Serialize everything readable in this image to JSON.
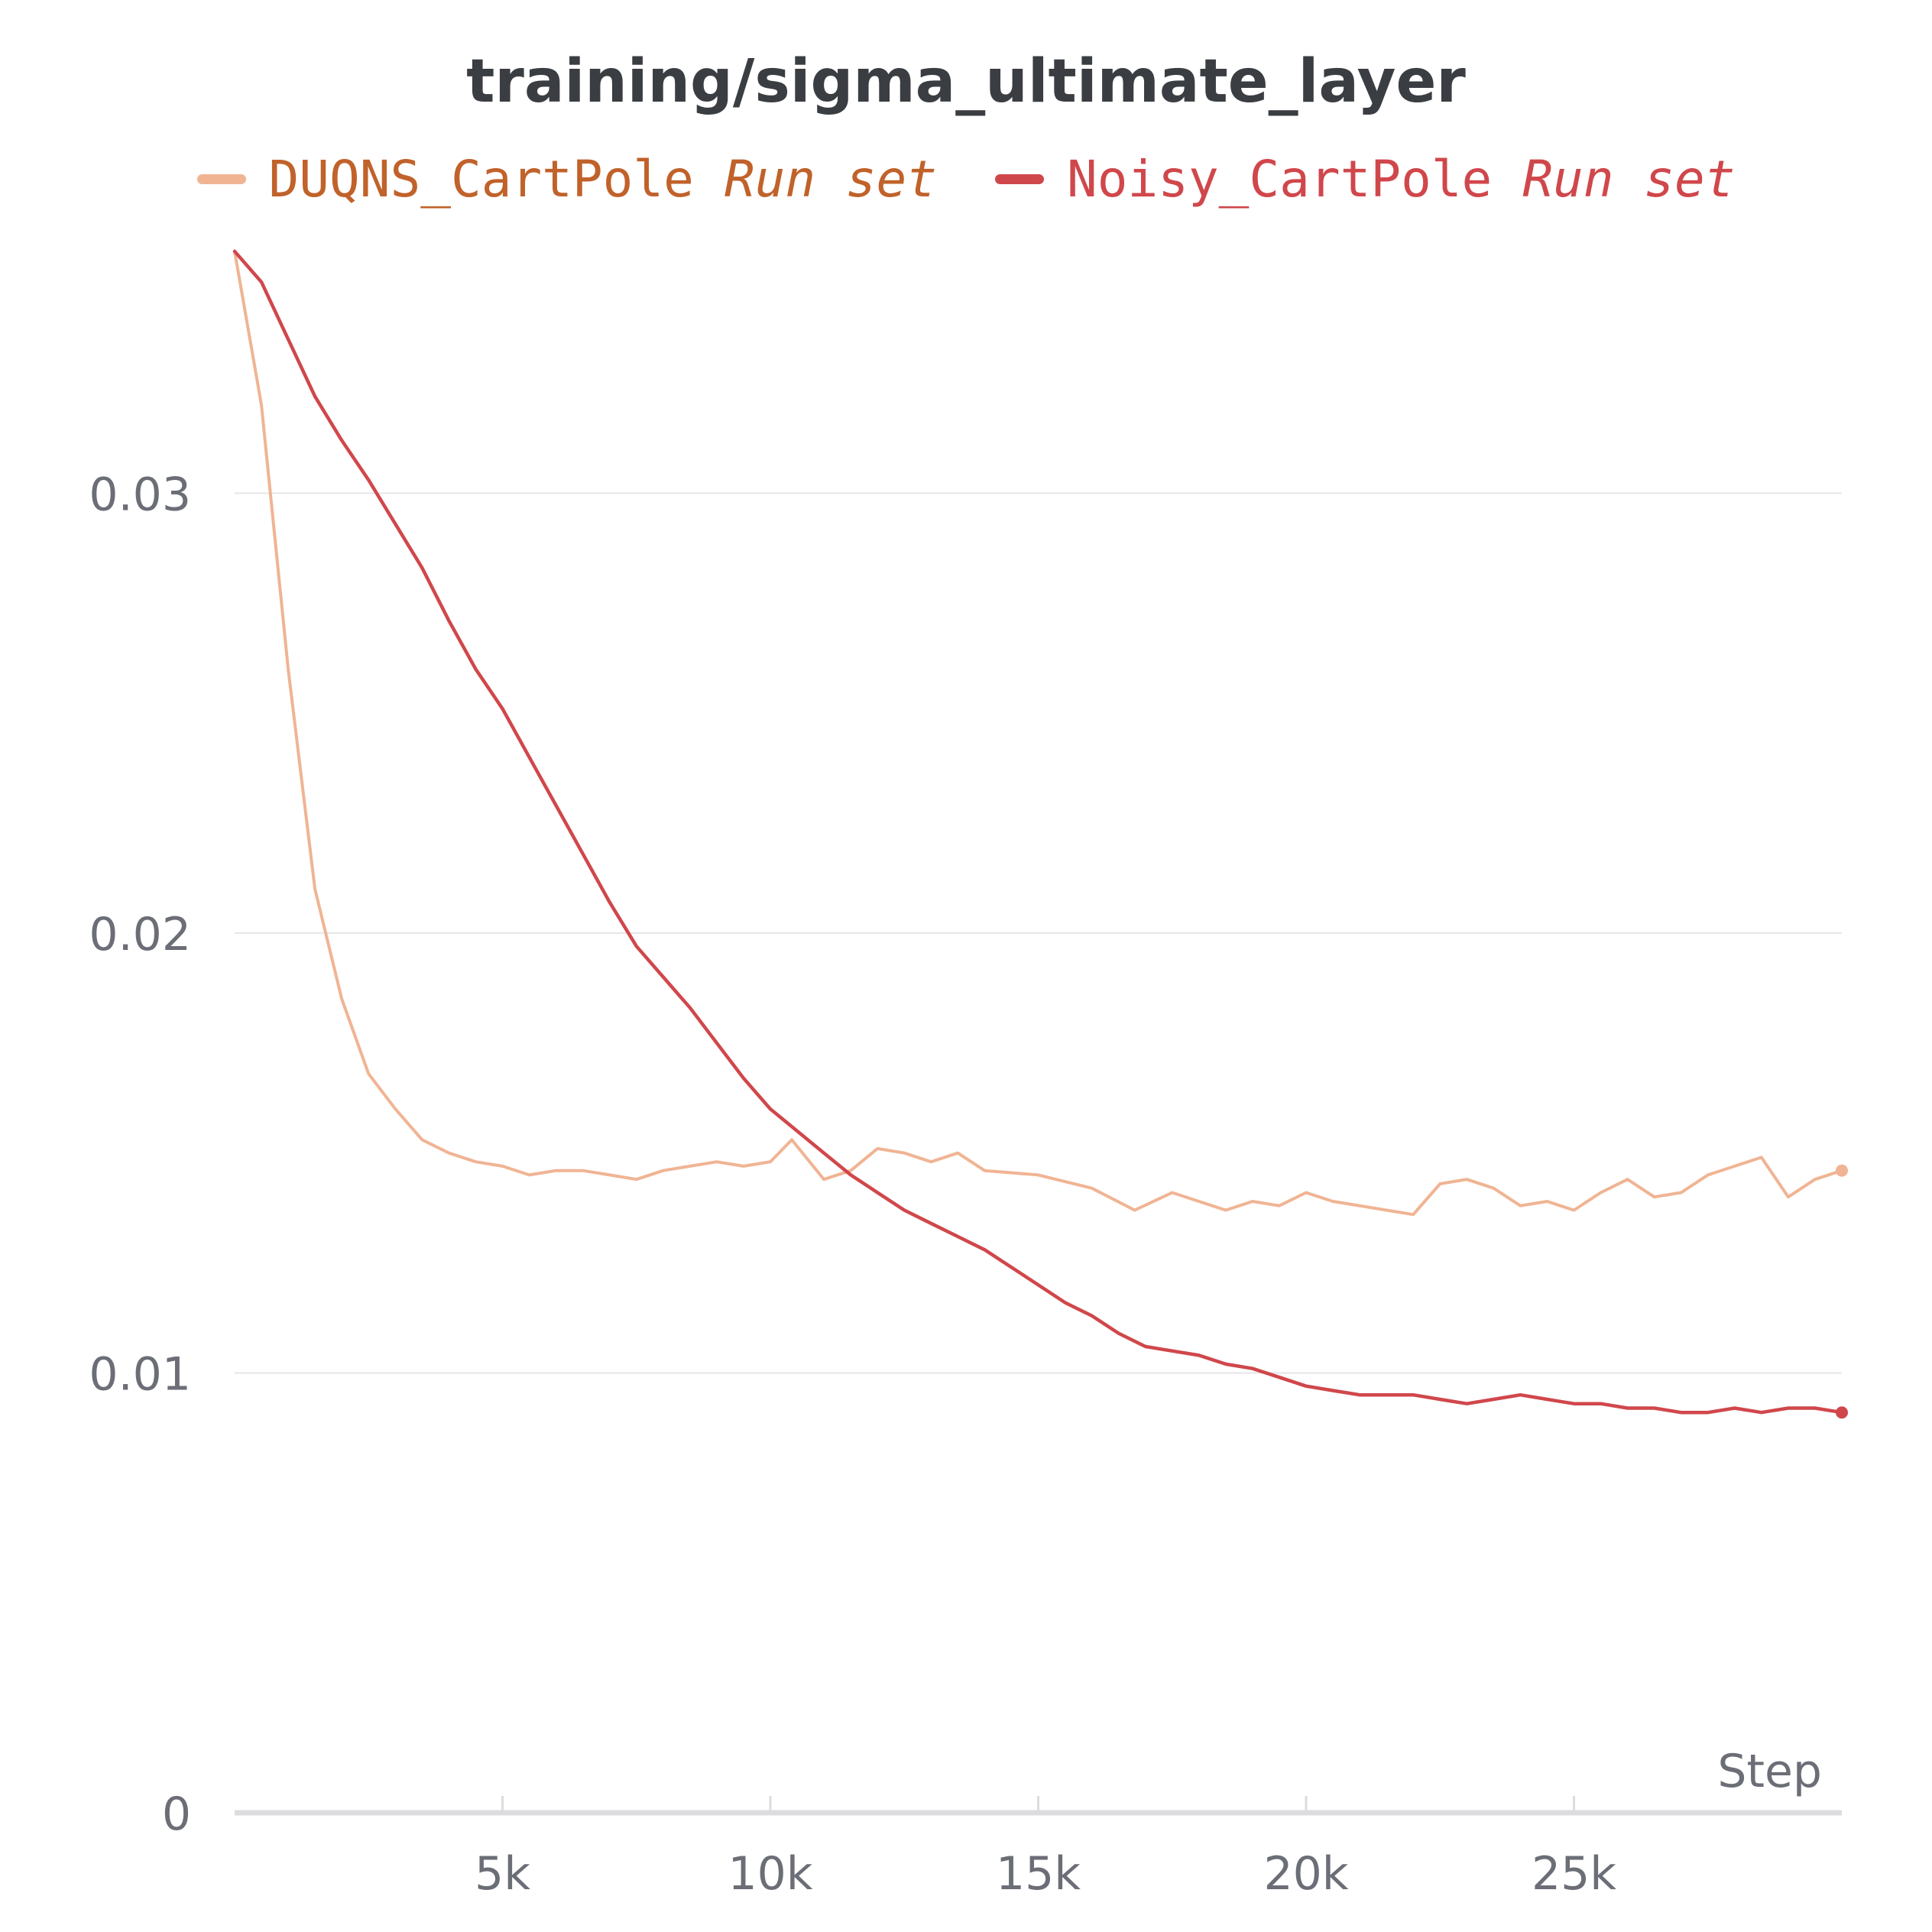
{
  "chart_data": {
    "type": "line",
    "title": "training/sigma_ultimate_layer",
    "xlabel": "Step",
    "ylabel": "",
    "xlim": [
      0,
      30000
    ],
    "ylim": [
      0,
      0.036
    ],
    "x_ticks": [
      {
        "value": 5000,
        "label": "5k"
      },
      {
        "value": 10000,
        "label": "10k"
      },
      {
        "value": 15000,
        "label": "15k"
      },
      {
        "value": 20000,
        "label": "20k"
      },
      {
        "value": 25000,
        "label": "25k"
      }
    ],
    "y_ticks": [
      {
        "value": 0,
        "label": "0"
      },
      {
        "value": 0.01,
        "label": "0.01"
      },
      {
        "value": 0.02,
        "label": "0.02"
      },
      {
        "value": 0.03,
        "label": "0.03"
      }
    ],
    "grid": true,
    "legend_position": "top-center",
    "legend_suffix": "Run set",
    "series": [
      {
        "name": "DUQNS_CartPole",
        "color": "#f0b493",
        "legend_color": "#c0622a",
        "x": [
          0,
          500,
          1000,
          1500,
          2000,
          2500,
          3000,
          3500,
          4000,
          4500,
          5000,
          5500,
          6000,
          6500,
          7000,
          7500,
          8000,
          8500,
          9000,
          9500,
          10000,
          10400,
          11000,
          11500,
          12000,
          12500,
          13000,
          13500,
          14000,
          15000,
          16000,
          16800,
          17500,
          18000,
          18500,
          19000,
          19500,
          20000,
          20500,
          21000,
          21500,
          22000,
          22500,
          23000,
          23500,
          24000,
          24500,
          25000,
          25500,
          26000,
          26500,
          27000,
          27500,
          28000,
          28500,
          29000,
          29500,
          30000
        ],
        "y": [
          0.0355,
          0.032,
          0.026,
          0.021,
          0.0185,
          0.0168,
          0.016,
          0.0153,
          0.015,
          0.0148,
          0.0147,
          0.0145,
          0.0146,
          0.0146,
          0.0145,
          0.0144,
          0.0146,
          0.0147,
          0.0148,
          0.0147,
          0.0148,
          0.0153,
          0.0144,
          0.0146,
          0.0151,
          0.015,
          0.0148,
          0.015,
          0.0146,
          0.0145,
          0.0142,
          0.0137,
          0.0141,
          0.0139,
          0.0137,
          0.0139,
          0.0138,
          0.0141,
          0.0139,
          0.0138,
          0.0137,
          0.0136,
          0.0143,
          0.0144,
          0.0142,
          0.0138,
          0.0139,
          0.0137,
          0.0141,
          0.0144,
          0.014,
          0.0141,
          0.0145,
          0.0147,
          0.0149,
          0.014,
          0.0144,
          0.0146
        ]
      },
      {
        "name": "Noisy_CartPole",
        "color": "#d0474b",
        "legend_color": "#d0474b",
        "x": [
          0,
          500,
          1000,
          1500,
          2000,
          2500,
          3000,
          3500,
          4000,
          4500,
          5000,
          5500,
          6000,
          6500,
          7000,
          7500,
          8000,
          8500,
          9000,
          9500,
          10000,
          10500,
          11000,
          11500,
          12000,
          12500,
          13000,
          13500,
          14000,
          14500,
          15000,
          15500,
          16000,
          16500,
          17000,
          17500,
          18000,
          18500,
          19000,
          19500,
          20000,
          20500,
          21000,
          21500,
          22000,
          22500,
          23000,
          23500,
          24000,
          24500,
          25000,
          25500,
          26000,
          26500,
          27000,
          27500,
          28000,
          28500,
          29000,
          29500,
          30000
        ],
        "y": [
          0.0355,
          0.0348,
          0.0335,
          0.0322,
          0.0312,
          0.0303,
          0.0293,
          0.0283,
          0.0271,
          0.026,
          0.0251,
          0.024,
          0.0229,
          0.0218,
          0.0207,
          0.0197,
          0.019,
          0.0183,
          0.0175,
          0.0167,
          0.016,
          0.0155,
          0.015,
          0.0145,
          0.0141,
          0.0137,
          0.0134,
          0.0131,
          0.0128,
          0.0124,
          0.012,
          0.0116,
          0.0113,
          0.0109,
          0.0106,
          0.0105,
          0.0104,
          0.0102,
          0.0101,
          0.0099,
          0.0097,
          0.0096,
          0.0095,
          0.0095,
          0.0095,
          0.0094,
          0.0093,
          0.0094,
          0.0095,
          0.0094,
          0.0093,
          0.0093,
          0.0092,
          0.0092,
          0.0091,
          0.0091,
          0.0092,
          0.0091,
          0.0092,
          0.0092,
          0.0091
        ]
      }
    ]
  }
}
